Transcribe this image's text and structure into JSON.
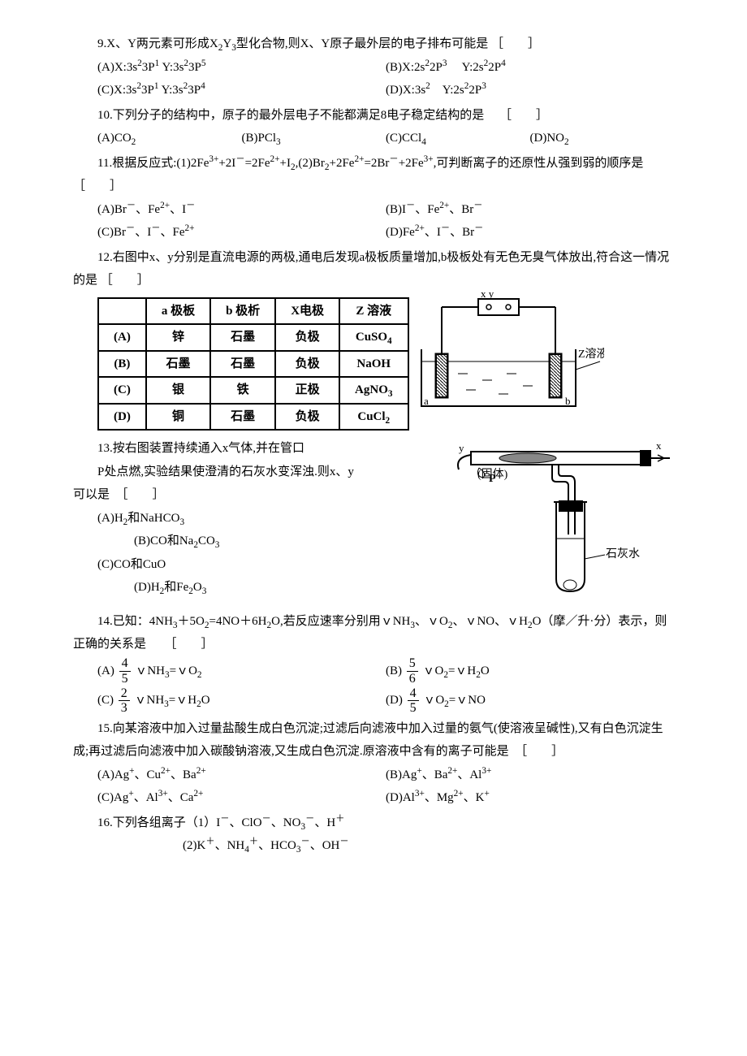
{
  "q9": {
    "text_a": "9.X、Y两元素可形成X",
    "text_b": "Y",
    "text_c": "型化合物,则X、Y原子最外层的电子排布可能是 ［　　］",
    "sub1": "2",
    "sub2": "3",
    "opts": {
      "a": "(A)X:3s<sup>2</sup>3P<sup>1</sup> Y:3s<sup>2</sup>3P<sup>5</sup>",
      "b": "(B)X:2s<sup>2</sup>2P<sup>3</sup>　 Y:2s<sup>2</sup>2P<sup>4</sup>",
      "c": "(C)X:3s<sup>2</sup>3P<sup>1</sup> Y:3s<sup>2</sup>3P<sup>4</sup>",
      "d": "(D)X:3s<sup>2</sup>　Y:2s<sup>2</sup>2P<sup>3</sup>"
    }
  },
  "q10": {
    "text": "10.下列分子的结构中，原子的最外层电子不能都满足8电子稳定结构的是　 ［　　］",
    "opts": {
      "a": "(A)CO<sub>2</sub>",
      "b": "(B)PCl<sub>3</sub>",
      "c": "(C)CCl<sub>4</sub>",
      "d": "(D)NO<sub>2</sub>"
    }
  },
  "q11": {
    "text": "11.根据反应式:(1)2Fe<sup>3+</sup>+2I<sup>－</sup>=2Fe<sup>2+</sup>+I<sub>2</sub>,(2)Br<sub>2</sub>+2Fe<sup>2+</sup>=2Br<sup>－</sup>+2Fe<sup>3+</sup>,可判断离子的还原性从强到弱的顺序是　［　　］",
    "opts": {
      "a": "(A)Br<sup>－</sup>、Fe<sup>2+</sup>、I<sup>－</sup>",
      "b": "(B)I<sup>－</sup>、Fe<sup>2+</sup>、Br<sup>－</sup>",
      "c": "(C)Br<sup>－</sup>、I<sup>－</sup>、Fe<sup>2+</sup>",
      "d": "(D)Fe<sup>2+</sup>、I<sup>－</sup>、Br<sup>－</sup>"
    }
  },
  "q12": {
    "text": "12.右图中x、y分别是直流电源的两极,通电后发现a极板质量增加,b极板处有无色无臭气体放出,符合这一情况的是 ［　　］",
    "headers": [
      "",
      "a 极板",
      "b 极析",
      "X电极",
      "Z 溶液"
    ],
    "rows": [
      [
        "(A)",
        "锌",
        "石墨",
        "负极",
        "CuSO<sub>4</sub>"
      ],
      [
        "(B)",
        "石墨",
        "石墨",
        "负极",
        "NaOH"
      ],
      [
        "(C)",
        "银",
        "铁",
        "正极",
        "AgNO<sub>3</sub>"
      ],
      [
        "(D)",
        "铜",
        "石墨",
        "负极",
        "CuCl<sub>2</sub>"
      ]
    ],
    "svg": {
      "label_z": "Z溶液",
      "label_a": "a",
      "label_b": "b",
      "label_xy": "x y"
    }
  },
  "q13": {
    "text1": "13.按右图装置持续通入x气体,并在管口",
    "text2": "P处点燃,实验结果使澄清的石灰水变浑浊.则x、y",
    "text3": "可以是　［　　］",
    "opts": {
      "a": "(A)H<sub>2</sub>和NaHCO<sub>3</sub>",
      "b": "(B)CO和Na<sub>2</sub>CO<sub>3</sub>",
      "c": "(C)CO和CuO",
      "d": "(D)H<sub>2</sub>和Fe<sub>2</sub>O<sub>3</sub>"
    },
    "svg": {
      "y": "y",
      "solid": "(固体)",
      "p": "P",
      "x": "x",
      "lime": "石灰水"
    }
  },
  "q14": {
    "text": "14.已知：4NH<sub>3</sub>＋5O<sub>2</sub>=4NO＋6H<sub>2</sub>O,若反应速率分别用ｖNH<sub>3</sub>、ｖO<sub>2</sub>、ｖNO、ｖH<sub>2</sub>O（摩／升·分）表示，则正确的关系是　　［　　］",
    "opts": {
      "a": {
        "label": "(A)",
        "num": "4",
        "den": "5",
        "rhs": "ｖNH<sub>3</sub>=ｖO<sub>2</sub>"
      },
      "b": {
        "label": "(B)",
        "num": "5",
        "den": "6",
        "rhs": "ｖO<sub>2</sub>=ｖH<sub>2</sub>O"
      },
      "c": {
        "label": "(C)",
        "num": "2",
        "den": "3",
        "rhs": "ｖNH<sub>3</sub>=ｖH<sub>2</sub>O"
      },
      "d": {
        "label": "(D)",
        "num": "4",
        "den": "5",
        "rhs": "ｖO<sub>2</sub>=ｖNO"
      }
    }
  },
  "q15": {
    "text": "15.向某溶液中加入过量盐酸生成白色沉淀;过滤后向滤液中加入过量的氨气(使溶液呈碱性),又有白色沉淀生成;再过滤后向滤液中加入碳酸钠溶液,又生成白色沉淀.原溶液中含有的离子可能是　［　　］",
    "opts": {
      "a": "(A)Ag<sup>+</sup>、Cu<sup>2+</sup>、Ba<sup>2+</sup>",
      "b": "(B)Ag<sup>+</sup>、Ba<sup>2+</sup>、Al<sup>3+</sup>",
      "c": "(C)Ag<sup>+</sup>、Al<sup>3+</sup>、Ca<sup>2+</sup>",
      "d": "(D)Al<sup>3+</sup>、Mg<sup>2+</sup>、K<sup>+</sup>"
    }
  },
  "q16": {
    "text1": "16.下列各组离子（1）I<sup>－</sup>、ClO<sup>－</sup>、NO<sub>3</sub><sup>－</sup>、H<sup>＋</sup>",
    "text2": "(2)K<sup>＋</sup>、NH<sub>4</sub><sup>＋</sup>、HCO<sub>3</sub><sup>－</sup>、OH<sup>－</sup>"
  }
}
